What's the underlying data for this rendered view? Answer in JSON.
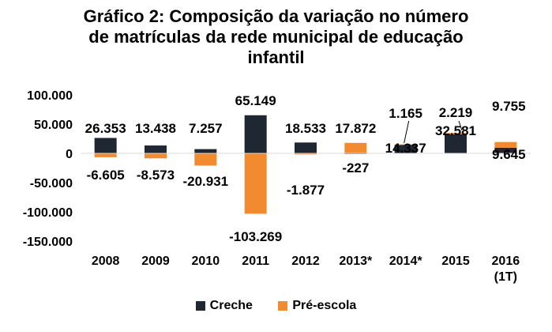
{
  "chart_data": {
    "type": "bar",
    "stacked": true,
    "title": [
      "Gráfico 2: Composição da variação no número",
      "de matrículas da rede municipal de educação",
      "infantil"
    ],
    "categories": [
      "2008",
      "2009",
      "2010",
      "2011",
      "2012",
      "2013*",
      "2014*",
      "2015",
      "2016 (1T)"
    ],
    "category_lines": [
      [
        "2008"
      ],
      [
        "2009"
      ],
      [
        "2010"
      ],
      [
        "2011"
      ],
      [
        "2012"
      ],
      [
        "2013*"
      ],
      [
        "2014*"
      ],
      [
        "2015"
      ],
      [
        "2016",
        "(1T)"
      ]
    ],
    "series": [
      {
        "name": "Creche",
        "color": "#1f2733",
        "values": [
          26353,
          13438,
          7257,
          65149,
          18533,
          -227,
          14337,
          32581,
          9645
        ],
        "labels": [
          "26.353",
          "13.438",
          "7.257",
          "65.149",
          "18.533",
          "-227",
          "14.337",
          "32.581",
          "9.645"
        ]
      },
      {
        "name": "Pré-escola",
        "color": "#f28a30",
        "values": [
          -6605,
          -8573,
          -20931,
          -103269,
          -1877,
          17872,
          1165,
          2219,
          9755
        ],
        "labels": [
          "-6.605",
          "-8.573",
          "-20.931",
          "-103.269",
          "-1.877",
          "17.872",
          "1.165",
          "2.219",
          "9.755"
        ]
      }
    ],
    "ylim": [
      -150000,
      100000
    ],
    "yticks": [
      100000,
      50000,
      0,
      -50000,
      -100000,
      -150000
    ],
    "ytick_labels": [
      "100.000",
      "50.000",
      "0",
      "-50.000",
      "-100.000",
      "-150.000"
    ],
    "xlabel": "",
    "ylabel": "",
    "legend_position": "bottom"
  }
}
